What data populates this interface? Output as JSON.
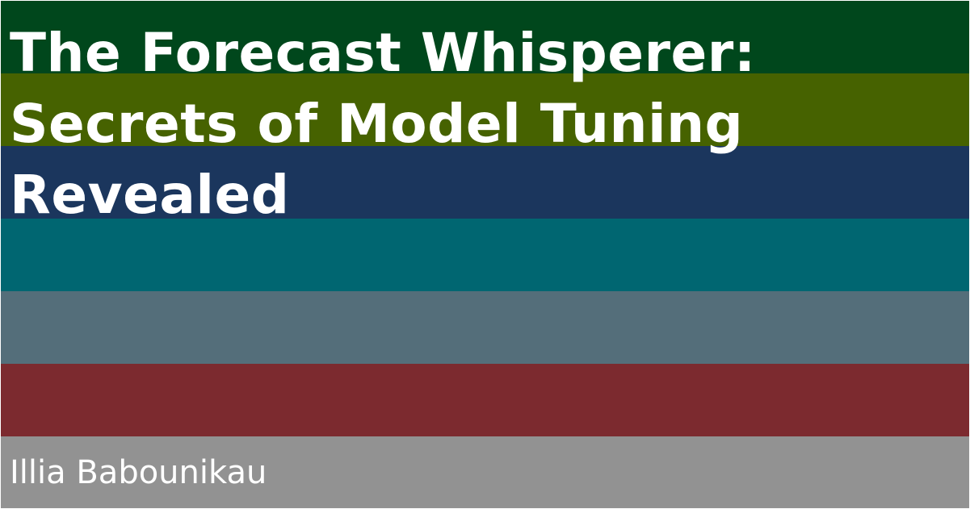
{
  "title_lines": [
    "The Forecast Whisperer:",
    "Secrets of Model Tuning",
    "Revealed"
  ],
  "author": "Illia Babounikau",
  "stripe_colors": [
    "#00471c",
    "#466200",
    "#1b365d",
    "#006671",
    "#546e7a",
    "#7c2a2f",
    "#929292"
  ]
}
